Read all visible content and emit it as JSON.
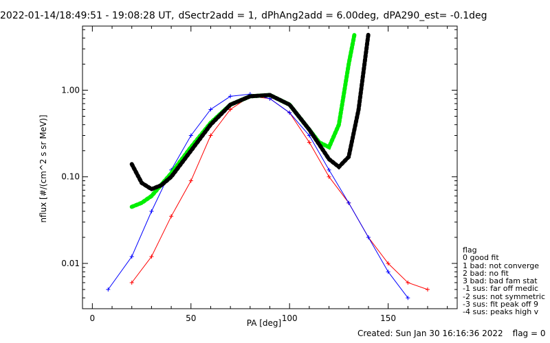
{
  "header": {
    "time_range": "2022-01-14/18:49:51 - 19:08:28 UT,",
    "sectr": "dSectr2add = 1,",
    "phang": "dPhAng2add = 6.00deg,",
    "pa290": "dPA290_est=  -0.1deg"
  },
  "footer": {
    "created": "Created: Sun Jan 30 16:16:36 2022",
    "flag": "flag = 0"
  },
  "legend": {
    "title": "flag",
    "items": [
      " 0 good fit",
      " 1 bad: not converge",
      " 2 bad: no fit",
      " 3 bad: bad fam stat",
      "-1 sus: far off medic",
      "-2 sus: not symmetric",
      "-3 sus: fit peak off 9",
      "-4 sus: peaks high v"
    ]
  },
  "chart_data": {
    "type": "line",
    "title": "",
    "xlabel": "PA [deg]",
    "ylabel": "nflux [#/(cm^2 s sr MeV)]",
    "xlim": [
      -5,
      185
    ],
    "ylim": [
      0.003,
      5.5
    ],
    "y_scale": "log",
    "x_ticks": [
      "0",
      "50",
      "100",
      "150"
    ],
    "x_tick_values": [
      0,
      50,
      100,
      150
    ],
    "y_ticks": [
      "0.01",
      "0.10",
      "1.00"
    ],
    "y_tick_values": [
      0.01,
      0.1,
      1.0
    ],
    "series": [
      {
        "color": "#ff0000",
        "style": "line+plus",
        "x": [
          20,
          30,
          40,
          50,
          60,
          70,
          80,
          90,
          100,
          110,
          120,
          130,
          140,
          150,
          160,
          170
        ],
        "y": [
          0.006,
          0.012,
          0.035,
          0.09,
          0.3,
          0.6,
          0.85,
          0.8,
          0.55,
          0.25,
          0.1,
          0.05,
          0.02,
          0.01,
          0.006,
          0.005
        ]
      },
      {
        "color": "#0000ff",
        "style": "line+plus",
        "x": [
          8,
          20,
          30,
          40,
          50,
          60,
          70,
          80,
          90,
          100,
          110,
          120,
          130,
          140,
          150,
          160
        ],
        "y": [
          0.005,
          0.012,
          0.04,
          0.12,
          0.3,
          0.6,
          0.85,
          0.9,
          0.8,
          0.55,
          0.3,
          0.12,
          0.05,
          0.02,
          0.008,
          0.004
        ]
      },
      {
        "color": "#00ee00",
        "style": "thick-dots",
        "x": [
          20,
          25,
          30,
          40,
          50,
          60,
          70,
          80,
          90,
          100,
          110,
          115,
          120,
          125,
          130,
          133
        ],
        "y": [
          0.045,
          0.05,
          0.06,
          0.11,
          0.22,
          0.42,
          0.68,
          0.85,
          0.88,
          0.68,
          0.35,
          0.25,
          0.22,
          0.4,
          2.0,
          4.5
        ]
      },
      {
        "color": "#000000",
        "style": "thick-dots",
        "x": [
          20,
          25,
          30,
          35,
          40,
          50,
          60,
          70,
          80,
          90,
          100,
          110,
          120,
          125,
          130,
          135,
          140
        ],
        "y": [
          0.14,
          0.085,
          0.072,
          0.08,
          0.1,
          0.2,
          0.4,
          0.68,
          0.85,
          0.88,
          0.68,
          0.35,
          0.16,
          0.13,
          0.17,
          0.6,
          4.5
        ]
      }
    ]
  }
}
